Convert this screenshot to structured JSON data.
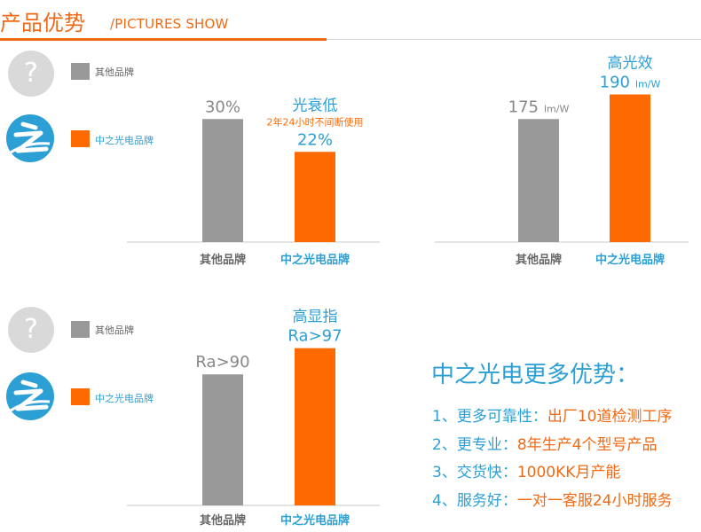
{
  "header": {
    "title": "产品优势",
    "subtitle": "/PICTURES SHOW"
  },
  "legend": {
    "other": "其他品牌",
    "ours": "中之光电品牌",
    "unknown_icon": "question-icon",
    "brand_icon": "zhi-logo-icon"
  },
  "colors": {
    "accent_orange": "#ff6a00",
    "brand_blue": "#2c9fd4",
    "bar_gray": "#999999",
    "text_gray": "#888888"
  },
  "chart_data": [
    {
      "type": "bar",
      "categories": [
        "其他品牌",
        "中之光电品牌"
      ],
      "values": [
        30,
        22
      ],
      "value_labels": [
        "30%",
        "22%"
      ],
      "annotation_title": "光衰低",
      "annotation_note": "2年24小时不间断使用",
      "title": "",
      "xlabel": "",
      "ylabel": "",
      "ylim": [
        0,
        40
      ]
    },
    {
      "type": "bar",
      "categories": [
        "其他品牌",
        "中之光电品牌"
      ],
      "values": [
        175,
        190
      ],
      "value_labels": [
        "175",
        "190"
      ],
      "unit": "lm/W",
      "annotation_title": "高光效",
      "title": "",
      "xlabel": "",
      "ylabel": "",
      "ylim": [
        100,
        200
      ]
    },
    {
      "type": "bar",
      "categories": [
        "其他品牌",
        "中之光电品牌"
      ],
      "values": [
        90,
        97
      ],
      "value_labels": [
        "Ra>90",
        "Ra>97"
      ],
      "annotation_title": "高显指",
      "title": "",
      "xlabel": "",
      "ylabel": "",
      "ylim": [
        55,
        100
      ]
    }
  ],
  "advantages": {
    "title": "中之光电更多优势：",
    "items": [
      {
        "key": "1、更多可靠性：",
        "value": "出厂10道检测工序"
      },
      {
        "key": "2、更专业：",
        "value": "8年生产4个型号产品"
      },
      {
        "key": "3、交货快：",
        "value": "1000KK月产能"
      },
      {
        "key": "4、服务好：",
        "value": "一对一客服24小时服务"
      }
    ]
  }
}
